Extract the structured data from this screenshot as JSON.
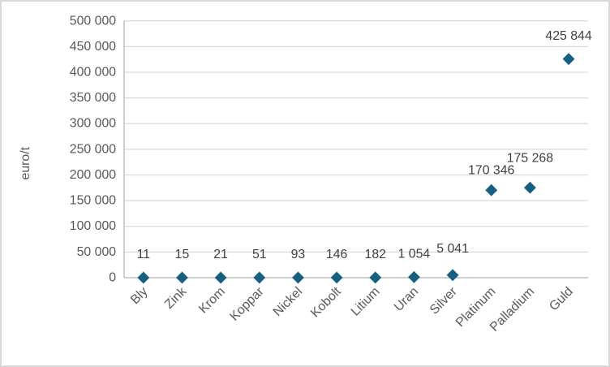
{
  "chart_data": {
    "type": "scatter",
    "title": "",
    "xlabel": "",
    "ylabel": "euro/t",
    "categories": [
      "Bly",
      "Zink",
      "Krom",
      "Koppar",
      "Nickel",
      "Kobolt",
      "Litium",
      "Uran",
      "Silver",
      "Platinum",
      "Palladium",
      "Guld"
    ],
    "values": [
      11,
      15,
      21,
      51,
      93,
      146,
      182,
      1054,
      5041,
      170346,
      175268,
      425844
    ],
    "data_labels": [
      "11",
      "15",
      "21",
      "51",
      "93",
      "146",
      "182",
      "1 054",
      "5 041",
      "170 346",
      "175 268",
      "425 844"
    ],
    "ylim": [
      0,
      500000
    ],
    "ytick_step": 50000,
    "ytick_labels": [
      "0",
      "50 000",
      "100 000",
      "150 000",
      "200 000",
      "250 000",
      "300 000",
      "350 000",
      "400 000",
      "450 000",
      "500 000"
    ],
    "grid": true,
    "legend": false,
    "marker": "diamond",
    "colors": {
      "marker": "#156082",
      "gridline": "#D9D9D9",
      "axis": "#BFBFBF",
      "tick_text": "#595959",
      "data_label_text": "#404040",
      "border": "#D9D9D9"
    }
  }
}
